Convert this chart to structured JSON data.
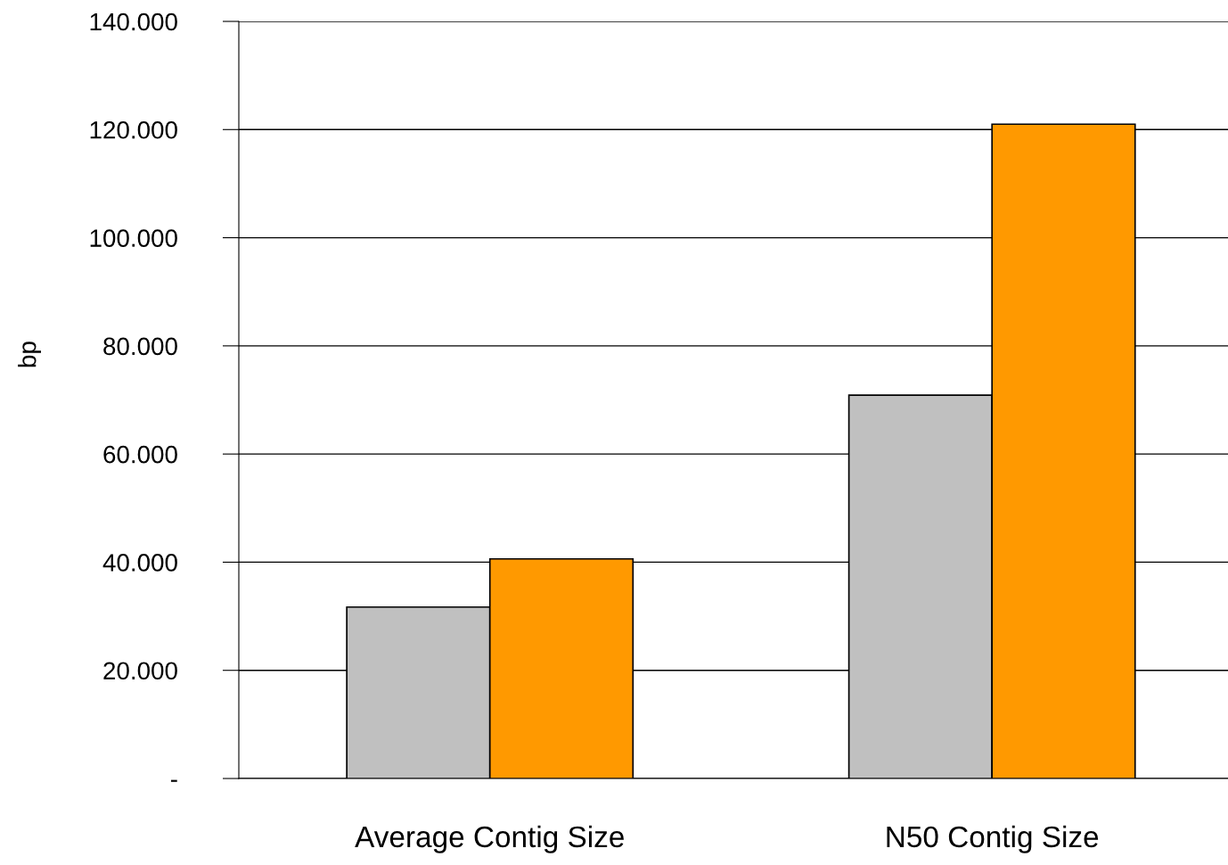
{
  "chart_data": {
    "type": "bar",
    "ylabel": "bp",
    "categories": [
      "Average Contig Size",
      "N50 Contig Size"
    ],
    "series": [
      {
        "color": "#c0c0c0",
        "values": [
          31700,
          70900
        ]
      },
      {
        "color": "#ff9900",
        "values": [
          40600,
          121000
        ]
      }
    ],
    "ylim": [
      0,
      140000
    ],
    "yticks": [
      {
        "value": 0,
        "label": "-"
      },
      {
        "value": 20000,
        "label": "20.000"
      },
      {
        "value": 40000,
        "label": "40.000"
      },
      {
        "value": 60000,
        "label": "60.000"
      },
      {
        "value": 80000,
        "label": "80.000"
      },
      {
        "value": 100000,
        "label": "100.000"
      },
      {
        "value": 120000,
        "label": "120.000"
      },
      {
        "value": 140000,
        "label": "140.000"
      }
    ],
    "grid": "y"
  }
}
